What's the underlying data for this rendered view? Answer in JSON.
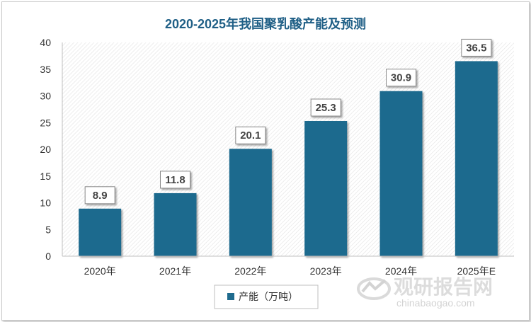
{
  "chart_data": {
    "type": "bar",
    "title": "2020-2025年我国聚乳酸产能及预测",
    "categories": [
      "2020年",
      "2021年",
      "2022年",
      "2023年",
      "2024年",
      "2025年E"
    ],
    "series": [
      {
        "name": "产能（万吨）",
        "values": [
          8.9,
          11.8,
          20.1,
          25.3,
          30.9,
          36.5
        ]
      }
    ],
    "value_labels": [
      "8.9",
      "11.8",
      "20.1",
      "25.3",
      "30.9",
      "36.5"
    ],
    "ylim": [
      0,
      40
    ],
    "yticks": [
      0,
      5,
      10,
      15,
      20,
      25,
      30,
      35,
      40
    ],
    "grid": false,
    "legend_position": "bottom",
    "bar_color": "#1f6b8e"
  },
  "watermark": {
    "text": "观研报告网",
    "url": "chinabaogao.com"
  }
}
